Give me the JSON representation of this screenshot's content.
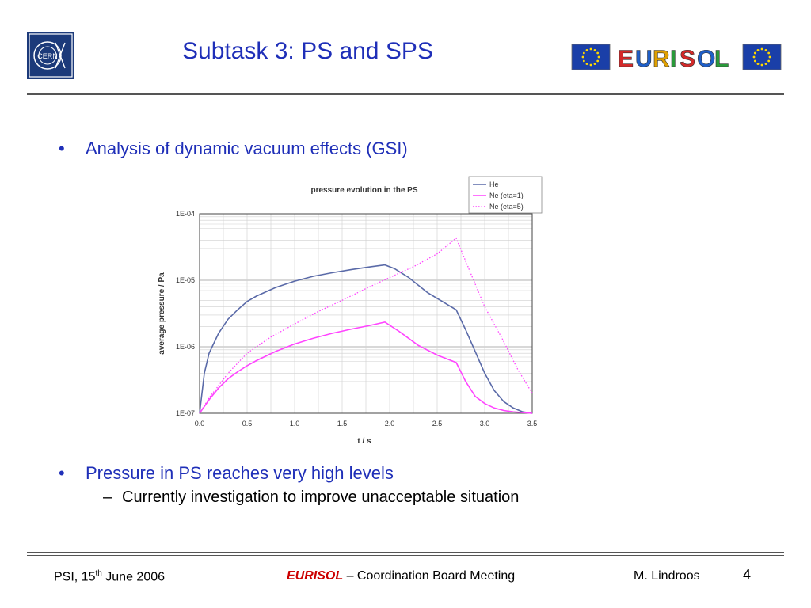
{
  "slide": {
    "title": "Subtask 3: PS and SPS",
    "logo_left": "CERN",
    "logo_right": "EURISOL"
  },
  "bullets": [
    {
      "text": "Analysis of dynamic vacuum effects (GSI)"
    },
    {
      "text": "Pressure in PS reaches very high levels",
      "sub": "Currently investigation to improve unacceptable situation"
    }
  ],
  "bullet_glyph": "•",
  "sub_glyph": "–",
  "footer": {
    "left_prefix": "PSI, 15",
    "left_sup": "th",
    "left_suffix": " June 2006",
    "center_brand": "EURISOL",
    "center_rest": " – Coordination Board Meeting",
    "author": "M. Lindroos",
    "page": "4"
  },
  "colors": {
    "title": "#1f2fb8",
    "brand": "#cc0000",
    "he": "#5a6aa8",
    "ne": "#ff44ff"
  },
  "chart_data": {
    "type": "line",
    "title": "pressure evolution in the PS",
    "xlabel": "t / s",
    "ylabel": "average pressure / Pa",
    "xlim": [
      0,
      3.5
    ],
    "ylim": [
      1e-07,
      0.0001
    ],
    "yscale": "log",
    "grid": true,
    "legend": "top-right",
    "x_ticks": [
      "0.0",
      "0.5",
      "1.0",
      "1.5",
      "2.0",
      "2.5",
      "3.0",
      "3.5"
    ],
    "y_ticks": [
      "1E-07",
      "1E-06",
      "1E-05",
      "1E-04"
    ],
    "series": [
      {
        "name": "He",
        "style": "solid",
        "color": "#5a6aa8",
        "x": [
          0,
          0.05,
          0.1,
          0.2,
          0.3,
          0.4,
          0.5,
          0.6,
          0.8,
          1.0,
          1.2,
          1.4,
          1.6,
          1.8,
          1.95,
          2.05,
          2.2,
          2.4,
          2.7,
          2.8,
          2.9,
          3.0,
          3.1,
          3.2,
          3.3,
          3.4,
          3.5
        ],
        "y": [
          1e-07,
          4e-07,
          8e-07,
          1.6e-06,
          2.6e-06,
          3.6e-06,
          4.8e-06,
          5.8e-06,
          7.8e-06,
          9.7e-06,
          1.15e-05,
          1.3e-05,
          1.45e-05,
          1.6e-05,
          1.7e-05,
          1.5e-05,
          1.1e-05,
          6.5e-06,
          3.6e-06,
          1.8e-06,
          8.5e-07,
          4e-07,
          2.2e-07,
          1.5e-07,
          1.2e-07,
          1.05e-07,
          1e-07
        ]
      },
      {
        "name": "Ne (eta=1)",
        "style": "solid",
        "color": "#ff44ff",
        "x": [
          0,
          0.1,
          0.2,
          0.3,
          0.4,
          0.5,
          0.6,
          0.8,
          1.0,
          1.2,
          1.4,
          1.6,
          1.8,
          1.95,
          2.1,
          2.3,
          2.5,
          2.7,
          2.8,
          2.9,
          3.0,
          3.1,
          3.2,
          3.3,
          3.5
        ],
        "y": [
          1e-07,
          1.6e-07,
          2.4e-07,
          3.3e-07,
          4.2e-07,
          5.2e-07,
          6.2e-07,
          8.5e-07,
          1.1e-06,
          1.35e-06,
          1.6e-06,
          1.85e-06,
          2.1e-06,
          2.35e-06,
          1.7e-06,
          1.05e-06,
          7.5e-07,
          5.8e-07,
          3e-07,
          1.8e-07,
          1.4e-07,
          1.2e-07,
          1.1e-07,
          1.05e-07,
          1e-07
        ]
      },
      {
        "name": "Ne (eta=5)",
        "style": "dotted",
        "color": "#ff44ff",
        "x": [
          0,
          0.1,
          0.3,
          0.5,
          0.75,
          1.0,
          1.25,
          1.5,
          1.75,
          2.0,
          2.25,
          2.5,
          2.7,
          2.85,
          3.0,
          3.2,
          3.35,
          3.5
        ],
        "y": [
          1e-07,
          1.7e-07,
          4e-07,
          8e-07,
          1.4e-06,
          2.2e-06,
          3.4e-06,
          5e-06,
          7.5e-06,
          1.1e-05,
          1.6e-05,
          2.5e-05,
          4.3e-05,
          1.3e-05,
          4e-06,
          1.2e-06,
          4.5e-07,
          2e-07
        ]
      }
    ]
  }
}
